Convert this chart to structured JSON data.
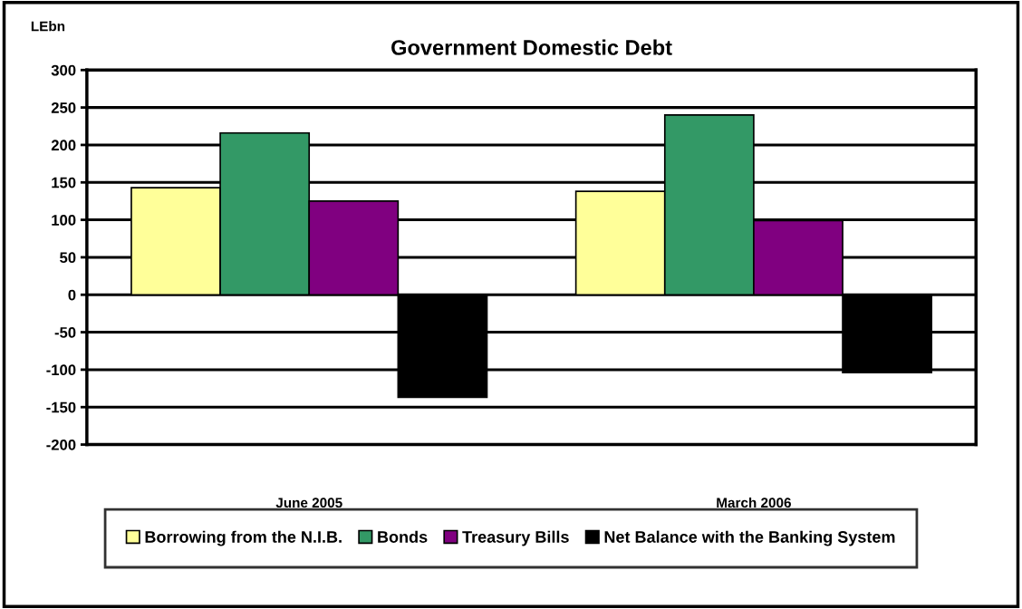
{
  "chart_data": {
    "type": "bar",
    "title": "Government Domestic Debt",
    "ylabel": "LEbn",
    "categories": [
      "June 2005",
      "March 2006"
    ],
    "series": [
      {
        "name": "Borrowing from the N.I.B.",
        "color": "#ffff99",
        "values": [
          143,
          138
        ]
      },
      {
        "name": "Bonds",
        "color": "#339966",
        "values": [
          216,
          240
        ]
      },
      {
        "name": "Treasury Bills",
        "color": "#800080",
        "values": [
          125,
          99
        ]
      },
      {
        "name": "Net Balance with the Banking System",
        "color": "#000000",
        "values": [
          -137,
          -104
        ]
      }
    ],
    "ylim": [
      -200,
      300
    ],
    "yticks": [
      -200,
      -150,
      -100,
      -50,
      0,
      50,
      100,
      150,
      200,
      250,
      300
    ],
    "grid": "y",
    "legend": "bottom"
  }
}
